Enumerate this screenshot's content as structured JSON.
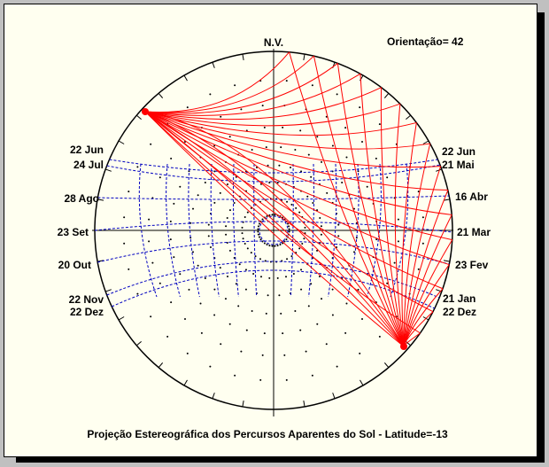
{
  "header": {
    "north_label": "N.V.",
    "orientation_label": "Orientação= 42"
  },
  "left_dates": [
    "22 Jun",
    "24 Jul",
    "28 Ago",
    "23 Set",
    "20 Out",
    "22 Nov",
    "22 Dez"
  ],
  "right_dates": [
    "22 Jun",
    "21 Mai",
    "16 Abr",
    "21 Mar",
    "23 Fev",
    "21 Jan",
    "22 Dez"
  ],
  "caption": "Projeção Estereográfica dos Percursos Aparentes do Sol - Latitude=-13",
  "colors": {
    "paper": "#fffff0",
    "outline": "#000000",
    "sun_paths": "#0000c0",
    "shading_mask": "#ff0000"
  }
}
